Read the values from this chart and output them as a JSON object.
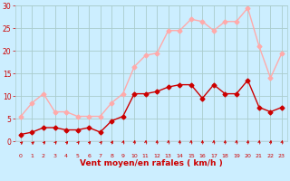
{
  "x": [
    0,
    1,
    2,
    3,
    4,
    5,
    6,
    7,
    8,
    9,
    10,
    11,
    12,
    13,
    14,
    15,
    16,
    17,
    18,
    19,
    20,
    21,
    22,
    23
  ],
  "wind_mean": [
    1.5,
    2.0,
    3.0,
    3.0,
    2.5,
    2.5,
    3.0,
    2.0,
    4.5,
    5.5,
    10.5,
    10.5,
    11.0,
    12.0,
    12.5,
    12.5,
    9.5,
    12.5,
    10.5,
    10.5,
    13.5,
    7.5,
    6.5,
    7.5
  ],
  "wind_gust": [
    5.5,
    8.5,
    10.5,
    6.5,
    6.5,
    5.5,
    5.5,
    5.5,
    8.5,
    10.5,
    16.5,
    19.0,
    19.5,
    24.5,
    24.5,
    27.0,
    26.5,
    24.5,
    26.5,
    26.5,
    29.5,
    21.0,
    14.0,
    19.5
  ],
  "mean_color": "#cc0000",
  "gust_color": "#ffaaaa",
  "bg_color": "#cceeff",
  "grid_color": "#aacccc",
  "xlabel": "Vent moyen/en rafales ( km/h )",
  "xlabel_color": "#cc0000",
  "tick_color": "#cc0000",
  "ylim": [
    0,
    30
  ],
  "xlim_min": -0.5,
  "xlim_max": 23.5,
  "yticks": [
    0,
    5,
    10,
    15,
    20,
    25,
    30
  ],
  "xticks": [
    0,
    1,
    2,
    3,
    4,
    5,
    6,
    7,
    8,
    9,
    10,
    11,
    12,
    13,
    14,
    15,
    16,
    17,
    18,
    19,
    20,
    21,
    22,
    23
  ],
  "markersize": 2.5,
  "linewidth": 1.0
}
